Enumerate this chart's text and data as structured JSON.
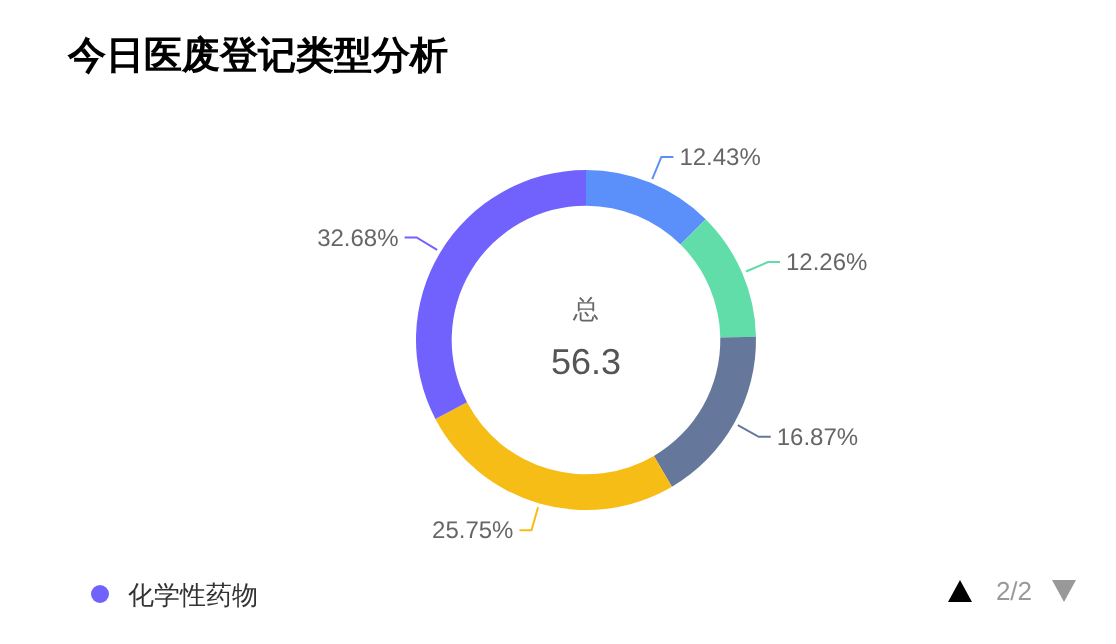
{
  "chart_data": {
    "type": "donut",
    "title": "今日医废登记类型分析",
    "categories": [
      null,
      null,
      null,
      null,
      "化学性药物"
    ],
    "values": [
      12.43,
      12.26,
      16.87,
      25.75,
      32.68
    ],
    "colors": [
      "#5b8ff9",
      "#61ddaa",
      "#65789b",
      "#f6bd16",
      "#7262fd"
    ],
    "value_labels": [
      "12.43%",
      "12.26%",
      "16.87%",
      "25.75%",
      "32.68%"
    ],
    "legend": "bottom left",
    "annotations": [
      "总",
      "56.3",
      "2/2"
    ]
  }
}
